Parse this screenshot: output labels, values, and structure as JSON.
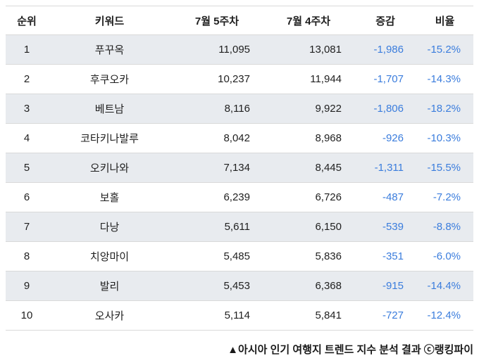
{
  "chart_data": {
    "type": "table",
    "title": "아시아 인기 여행지 트렌드 지수 분석",
    "columns": [
      "순위",
      "키워드",
      "7월 5주차",
      "7월 4주차",
      "증감",
      "비율"
    ],
    "rows": [
      [
        "1",
        "푸꾸옥",
        "11,095",
        "13,081",
        "-1,986",
        "-15.2%"
      ],
      [
        "2",
        "후쿠오카",
        "10,237",
        "11,944",
        "-1,707",
        "-14.3%"
      ],
      [
        "3",
        "베트남",
        "8,116",
        "9,922",
        "-1,806",
        "-18.2%"
      ],
      [
        "4",
        "코타키나발루",
        "8,042",
        "8,968",
        "-926",
        "-10.3%"
      ],
      [
        "5",
        "오키나와",
        "7,134",
        "8,445",
        "-1,311",
        "-15.5%"
      ],
      [
        "6",
        "보홀",
        "6,239",
        "6,726",
        "-487",
        "-7.2%"
      ],
      [
        "7",
        "다낭",
        "5,611",
        "6,150",
        "-539",
        "-8.8%"
      ],
      [
        "8",
        "치앙마이",
        "5,485",
        "5,836",
        "-351",
        "-6.0%"
      ],
      [
        "9",
        "발리",
        "5,453",
        "6,368",
        "-915",
        "-14.4%"
      ],
      [
        "10",
        "오사카",
        "5,114",
        "5,841",
        "-727",
        "-12.4%"
      ]
    ],
    "caption": "▲아시아 인기 여행지 트렌드 지수 분석 결과 ⓒ랭킹파이",
    "layout": {
      "alternating_rows": true,
      "shaded_rows": "odd ranks",
      "grid": "horizontal only"
    }
  },
  "colors": {
    "accent_blue": "#3b7ddd",
    "alt_row_bg": "#e8ebef",
    "grid_line": "#d9d9d9"
  }
}
